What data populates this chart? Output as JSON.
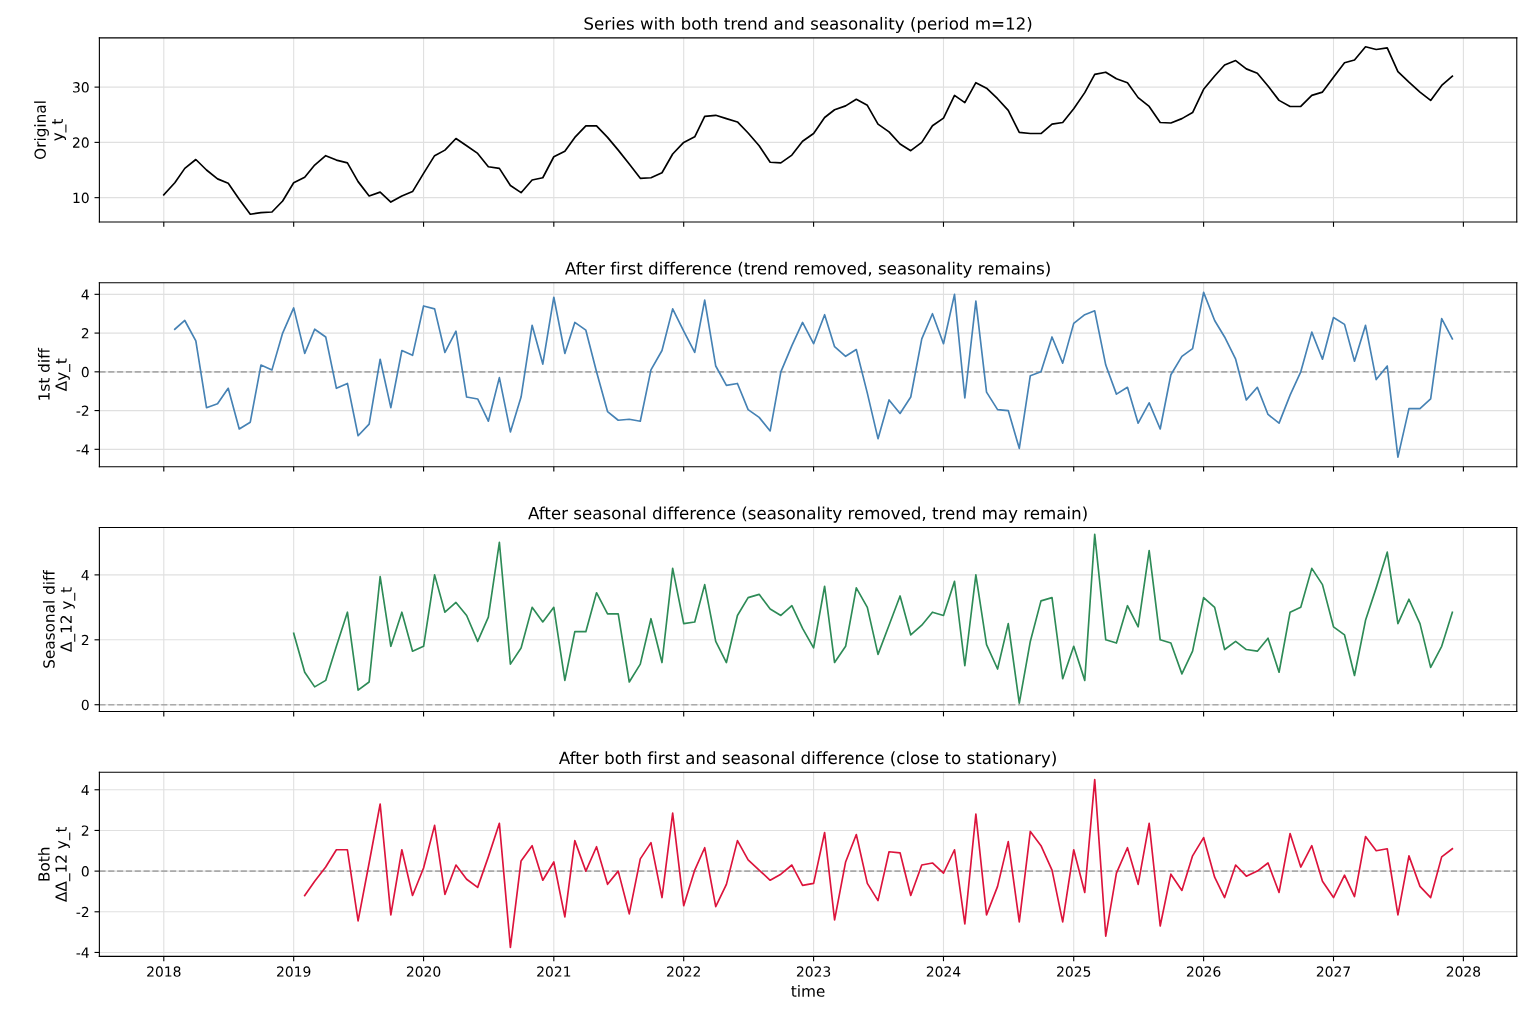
{
  "chart_data": [
    {
      "type": "line",
      "title": "Series with both trend and seasonality (period m=12)",
      "ylabel": "Original\ny_t",
      "tick_labels": "y",
      "grid": true,
      "x": [
        "2018-01",
        "2018-02",
        "2018-03",
        "2018-04",
        "2018-05",
        "2018-06",
        "2018-07",
        "2018-08",
        "2018-09",
        "2018-10",
        "2018-11",
        "2018-12",
        "2019-01",
        "2019-02",
        "2019-03",
        "2019-04",
        "2019-05",
        "2019-06",
        "2019-07",
        "2019-08",
        "2019-09",
        "2019-10",
        "2019-11",
        "2019-12",
        "2020-01",
        "2020-02",
        "2020-03",
        "2020-04",
        "2020-05",
        "2020-06",
        "2020-07",
        "2020-08",
        "2020-09",
        "2020-10",
        "2020-11",
        "2020-12",
        "2021-01",
        "2021-02",
        "2021-03",
        "2021-04",
        "2021-05",
        "2021-06",
        "2021-07",
        "2021-08",
        "2021-09",
        "2021-10",
        "2021-11",
        "2021-12",
        "2022-01",
        "2022-02",
        "2022-03",
        "2022-04",
        "2022-05",
        "2022-06",
        "2022-07",
        "2022-08",
        "2022-09",
        "2022-10",
        "2022-11",
        "2022-12",
        "2023-01",
        "2023-02",
        "2023-03",
        "2023-04",
        "2023-05",
        "2023-06",
        "2023-07",
        "2023-08",
        "2023-09",
        "2023-10",
        "2023-11",
        "2023-12",
        "2024-01",
        "2024-02",
        "2024-03",
        "2024-04",
        "2024-05",
        "2024-06",
        "2024-07",
        "2024-08",
        "2024-09",
        "2024-10",
        "2024-11",
        "2024-12",
        "2025-01",
        "2025-02",
        "2025-03",
        "2025-04",
        "2025-05",
        "2025-06",
        "2025-07",
        "2025-08",
        "2025-09",
        "2025-10",
        "2025-11",
        "2025-12",
        "2026-01",
        "2026-02",
        "2026-03",
        "2026-04",
        "2026-05",
        "2026-06",
        "2026-07",
        "2026-08",
        "2026-09",
        "2026-10",
        "2026-11",
        "2026-12",
        "2027-01",
        "2027-02",
        "2027-03",
        "2027-04",
        "2027-05",
        "2027-06",
        "2027-07",
        "2027-08",
        "2027-09",
        "2027-10",
        "2027-11",
        "2027-12"
      ],
      "xlim": [
        "2017-07-04",
        "2028-05-30"
      ],
      "xticks": [
        "2018",
        "2019",
        "2020",
        "2021",
        "2022",
        "2023",
        "2024",
        "2025",
        "2026",
        "2027",
        "2028"
      ],
      "ylim": [
        5.6,
        38.9
      ],
      "yticks": [
        10,
        20,
        30
      ],
      "series": [
        {
          "color": "#000000",
          "values": [
            10.5,
            12.7,
            15.3,
            16.9,
            15.0,
            13.4,
            12.6,
            9.7,
            7.0,
            7.3,
            7.4,
            9.4,
            12.7,
            13.7,
            15.9,
            17.6,
            16.8,
            16.3,
            12.9,
            10.3,
            11.0,
            9.2,
            10.3,
            11.1,
            14.4,
            17.6,
            18.6,
            20.7,
            19.4,
            18.0,
            15.6,
            15.3,
            12.2,
            10.9,
            13.2,
            13.6,
            17.4,
            18.4,
            20.9,
            23.0,
            23.0,
            20.9,
            18.6,
            16.1,
            13.5,
            13.6,
            14.5,
            17.9,
            20.0,
            21.0,
            24.7,
            24.9,
            24.3,
            23.7,
            21.7,
            19.4,
            16.4,
            16.3,
            17.7,
            20.2,
            21.6,
            24.5,
            25.9,
            26.6,
            27.8,
            26.7,
            23.3,
            21.9,
            19.7,
            18.5,
            20.0,
            23.0,
            24.4,
            28.5,
            27.2,
            30.8,
            29.8,
            27.9,
            25.8,
            21.8,
            21.6,
            21.6,
            23.3,
            23.6,
            26.1,
            29.0,
            32.3,
            32.7,
            31.5,
            30.8,
            28.1,
            26.5,
            23.6,
            23.5,
            24.3,
            25.4,
            29.6,
            32.0,
            34.0,
            34.8,
            33.3,
            32.5,
            30.2,
            27.6,
            26.5,
            26.5,
            28.5,
            29.1,
            31.8,
            34.4,
            34.9,
            37.3,
            36.8,
            37.1,
            32.8,
            30.9,
            29.1,
            27.6,
            30.3,
            32.0
          ]
        }
      ]
    },
    {
      "type": "line",
      "title": "After first difference (trend removed, seasonality remains)",
      "ylabel": "1st diff\nΔy_t",
      "tick_labels": "y",
      "grid": true,
      "x": [
        "2018-02",
        "2018-03",
        "2018-04",
        "2018-05",
        "2018-06",
        "2018-07",
        "2018-08",
        "2018-09",
        "2018-10",
        "2018-11",
        "2018-12",
        "2019-01",
        "2019-02",
        "2019-03",
        "2019-04",
        "2019-05",
        "2019-06",
        "2019-07",
        "2019-08",
        "2019-09",
        "2019-10",
        "2019-11",
        "2019-12",
        "2020-01",
        "2020-02",
        "2020-03",
        "2020-04",
        "2020-05",
        "2020-06",
        "2020-07",
        "2020-08",
        "2020-09",
        "2020-10",
        "2020-11",
        "2020-12",
        "2021-01",
        "2021-02",
        "2021-03",
        "2021-04",
        "2021-05",
        "2021-06",
        "2021-07",
        "2021-08",
        "2021-09",
        "2021-10",
        "2021-11",
        "2021-12",
        "2022-01",
        "2022-02",
        "2022-03",
        "2022-04",
        "2022-05",
        "2022-06",
        "2022-07",
        "2022-08",
        "2022-09",
        "2022-10",
        "2022-11",
        "2022-12",
        "2023-01",
        "2023-02",
        "2023-03",
        "2023-04",
        "2023-05",
        "2023-06",
        "2023-07",
        "2023-08",
        "2023-09",
        "2023-10",
        "2023-11",
        "2023-12",
        "2024-01",
        "2024-02",
        "2024-03",
        "2024-04",
        "2024-05",
        "2024-06",
        "2024-07",
        "2024-08",
        "2024-09",
        "2024-10",
        "2024-11",
        "2024-12",
        "2025-01",
        "2025-02",
        "2025-03",
        "2025-04",
        "2025-05",
        "2025-06",
        "2025-07",
        "2025-08",
        "2025-09",
        "2025-10",
        "2025-11",
        "2025-12",
        "2026-01",
        "2026-02",
        "2026-03",
        "2026-04",
        "2026-05",
        "2026-06",
        "2026-07",
        "2026-08",
        "2026-09",
        "2026-10",
        "2026-11",
        "2026-12",
        "2027-01",
        "2027-02",
        "2027-03",
        "2027-04",
        "2027-05",
        "2027-06",
        "2027-07",
        "2027-08",
        "2027-09",
        "2027-10",
        "2027-11",
        "2027-12"
      ],
      "xlim": [
        "2017-07-04",
        "2028-05-30"
      ],
      "xticks": [
        "2018",
        "2019",
        "2020",
        "2021",
        "2022",
        "2023",
        "2024",
        "2025",
        "2026",
        "2027",
        "2028"
      ],
      "ylim": [
        -4.9,
        4.6
      ],
      "yticks": [
        -4,
        -2,
        0,
        2,
        4
      ],
      "ref_lines": [
        {
          "axis": "y",
          "value": 0,
          "color": "#aaaaaa",
          "line_style": "dashed"
        }
      ],
      "series": [
        {
          "color": "#4682b4",
          "values": [
            2.2,
            2.65,
            1.6,
            -1.85,
            -1.65,
            -0.85,
            -2.95,
            -2.6,
            0.35,
            0.1,
            2.0,
            3.3,
            0.95,
            2.2,
            1.8,
            -0.85,
            -0.6,
            -3.3,
            -2.7,
            0.65,
            -1.85,
            1.1,
            0.85,
            3.4,
            3.25,
            1.0,
            2.1,
            -1.3,
            -1.4,
            -2.55,
            -0.3,
            -3.1,
            -1.3,
            2.4,
            0.4,
            3.85,
            0.95,
            2.55,
            2.15,
            0.0,
            -2.05,
            -2.5,
            -2.45,
            -2.55,
            0.1,
            1.1,
            3.25,
            2.1,
            1.0,
            3.7,
            0.3,
            -0.7,
            -0.6,
            -1.95,
            -2.35,
            -3.05,
            0.0,
            1.35,
            2.55,
            1.45,
            2.95,
            1.3,
            0.8,
            1.15,
            -1.1,
            -3.45,
            -1.45,
            -2.15,
            -1.3,
            1.7,
            3.0,
            1.45,
            4.0,
            -1.35,
            3.65,
            -1.05,
            -1.95,
            -2.0,
            -3.95,
            -0.2,
            0.0,
            1.8,
            0.45,
            2.5,
            2.95,
            3.15,
            0.35,
            -1.15,
            -0.8,
            -2.65,
            -1.6,
            -2.95,
            -0.15,
            0.8,
            1.2,
            4.1,
            2.65,
            1.8,
            0.65,
            -1.45,
            -0.8,
            -2.2,
            -2.65,
            -1.2,
            0.0,
            2.05,
            0.65,
            2.8,
            2.45,
            0.55,
            2.4,
            -0.4,
            0.3,
            -4.4,
            -1.9,
            -1.9,
            -1.4,
            2.75,
            1.7
          ]
        }
      ]
    },
    {
      "type": "line",
      "title": "After seasonal difference (seasonality removed, trend may remain)",
      "ylabel": "Seasonal diff\nΔ_12 y_t",
      "tick_labels": "y",
      "grid": true,
      "x": [
        "2019-01",
        "2019-02",
        "2019-03",
        "2019-04",
        "2019-05",
        "2019-06",
        "2019-07",
        "2019-08",
        "2019-09",
        "2019-10",
        "2019-11",
        "2019-12",
        "2020-01",
        "2020-02",
        "2020-03",
        "2020-04",
        "2020-05",
        "2020-06",
        "2020-07",
        "2020-08",
        "2020-09",
        "2020-10",
        "2020-11",
        "2020-12",
        "2021-01",
        "2021-02",
        "2021-03",
        "2021-04",
        "2021-05",
        "2021-06",
        "2021-07",
        "2021-08",
        "2021-09",
        "2021-10",
        "2021-11",
        "2021-12",
        "2022-01",
        "2022-02",
        "2022-03",
        "2022-04",
        "2022-05",
        "2022-06",
        "2022-07",
        "2022-08",
        "2022-09",
        "2022-10",
        "2022-11",
        "2022-12",
        "2023-01",
        "2023-02",
        "2023-03",
        "2023-04",
        "2023-05",
        "2023-06",
        "2023-07",
        "2023-08",
        "2023-09",
        "2023-10",
        "2023-11",
        "2023-12",
        "2024-01",
        "2024-02",
        "2024-03",
        "2024-04",
        "2024-05",
        "2024-06",
        "2024-07",
        "2024-08",
        "2024-09",
        "2024-10",
        "2024-11",
        "2024-12",
        "2025-01",
        "2025-02",
        "2025-03",
        "2025-04",
        "2025-05",
        "2025-06",
        "2025-07",
        "2025-08",
        "2025-09",
        "2025-10",
        "2025-11",
        "2025-12",
        "2026-01",
        "2026-02",
        "2026-03",
        "2026-04",
        "2026-05",
        "2026-06",
        "2026-07",
        "2026-08",
        "2026-09",
        "2026-10",
        "2026-11",
        "2026-12",
        "2027-01",
        "2027-02",
        "2027-03",
        "2027-04",
        "2027-05",
        "2027-06",
        "2027-07",
        "2027-08",
        "2027-09",
        "2027-10",
        "2027-11",
        "2027-12"
      ],
      "xlim": [
        "2017-07-04",
        "2028-05-30"
      ],
      "xticks": [
        "2018",
        "2019",
        "2020",
        "2021",
        "2022",
        "2023",
        "2024",
        "2025",
        "2026",
        "2027",
        "2028"
      ],
      "ylim": [
        -0.21,
        5.46
      ],
      "yticks": [
        0,
        2,
        4
      ],
      "ref_lines": [
        {
          "axis": "y",
          "value": 0,
          "color": "#aaaaaa",
          "line_style": "dashed"
        }
      ],
      "series": [
        {
          "color": "#2e8b57",
          "values": [
            2.2,
            1.0,
            0.55,
            0.75,
            1.8,
            2.85,
            0.45,
            0.7,
            3.95,
            1.8,
            2.85,
            1.65,
            1.8,
            4.0,
            2.85,
            3.15,
            2.75,
            1.95,
            2.7,
            5.0,
            1.25,
            1.75,
            3.0,
            2.55,
            3.0,
            0.75,
            2.25,
            2.25,
            3.45,
            2.8,
            2.8,
            0.7,
            1.25,
            2.65,
            1.3,
            4.2,
            2.5,
            2.55,
            3.7,
            1.95,
            1.3,
            2.75,
            3.3,
            3.4,
            2.95,
            2.75,
            3.05,
            2.35,
            1.75,
            3.65,
            1.3,
            1.8,
            3.6,
            3.0,
            1.55,
            2.45,
            3.35,
            2.15,
            2.45,
            2.85,
            2.75,
            3.8,
            1.2,
            4.0,
            1.85,
            1.1,
            2.5,
            0.05,
            1.95,
            3.2,
            3.3,
            0.8,
            1.8,
            0.75,
            5.25,
            2.0,
            1.9,
            3.05,
            2.4,
            4.75,
            2.0,
            1.9,
            0.95,
            1.65,
            3.3,
            3.0,
            1.7,
            1.95,
            1.7,
            1.65,
            2.05,
            1.0,
            2.85,
            3.0,
            4.2,
            3.7,
            2.4,
            2.15,
            0.9,
            2.6,
            3.6,
            4.7,
            2.5,
            3.25,
            2.5,
            1.15,
            1.8,
            2.85
          ]
        }
      ]
    },
    {
      "type": "line",
      "title": "After both first and seasonal difference (close to stationary)",
      "xlabel": "time",
      "ylabel": "Both\nΔΔ_12 y_t",
      "grid": true,
      "x": [
        "2019-02",
        "2019-03",
        "2019-04",
        "2019-05",
        "2019-06",
        "2019-07",
        "2019-08",
        "2019-09",
        "2019-10",
        "2019-11",
        "2019-12",
        "2020-01",
        "2020-02",
        "2020-03",
        "2020-04",
        "2020-05",
        "2020-06",
        "2020-07",
        "2020-08",
        "2020-09",
        "2020-10",
        "2020-11",
        "2020-12",
        "2021-01",
        "2021-02",
        "2021-03",
        "2021-04",
        "2021-05",
        "2021-06",
        "2021-07",
        "2021-08",
        "2021-09",
        "2021-10",
        "2021-11",
        "2021-12",
        "2022-01",
        "2022-02",
        "2022-03",
        "2022-04",
        "2022-05",
        "2022-06",
        "2022-07",
        "2022-08",
        "2022-09",
        "2022-10",
        "2022-11",
        "2022-12",
        "2023-01",
        "2023-02",
        "2023-03",
        "2023-04",
        "2023-05",
        "2023-06",
        "2023-07",
        "2023-08",
        "2023-09",
        "2023-10",
        "2023-11",
        "2023-12",
        "2024-01",
        "2024-02",
        "2024-03",
        "2024-04",
        "2024-05",
        "2024-06",
        "2024-07",
        "2024-08",
        "2024-09",
        "2024-10",
        "2024-11",
        "2024-12",
        "2025-01",
        "2025-02",
        "2025-03",
        "2025-04",
        "2025-05",
        "2025-06",
        "2025-07",
        "2025-08",
        "2025-09",
        "2025-10",
        "2025-11",
        "2025-12",
        "2026-01",
        "2026-02",
        "2026-03",
        "2026-04",
        "2026-05",
        "2026-06",
        "2026-07",
        "2026-08",
        "2026-09",
        "2026-10",
        "2026-11",
        "2026-12",
        "2027-01",
        "2027-02",
        "2027-03",
        "2027-04",
        "2027-05",
        "2027-06",
        "2027-07",
        "2027-08",
        "2027-09",
        "2027-10",
        "2027-11",
        "2027-12"
      ],
      "xlim": [
        "2017-07-04",
        "2028-05-30"
      ],
      "xticks": [
        {
          "value": "2018",
          "label": "2018"
        },
        {
          "value": "2019",
          "label": "2019"
        },
        {
          "value": "2020",
          "label": "2020"
        },
        {
          "value": "2021",
          "label": "2021"
        },
        {
          "value": "2022",
          "label": "2022"
        },
        {
          "value": "2023",
          "label": "2023"
        },
        {
          "value": "2024",
          "label": "2024"
        },
        {
          "value": "2025",
          "label": "2025"
        },
        {
          "value": "2026",
          "label": "2026"
        },
        {
          "value": "2027",
          "label": "2027"
        },
        {
          "value": "2028",
          "label": "2028"
        }
      ],
      "ylim": [
        -4.19,
        4.86
      ],
      "yticks": [
        -4,
        -2,
        0,
        2,
        4
      ],
      "ref_lines": [
        {
          "axis": "y",
          "value": 0,
          "color": "#aaaaaa",
          "line_style": "dashed"
        }
      ],
      "series": [
        {
          "color": "#dc143c",
          "values": [
            -1.2,
            -0.5,
            0.2,
            1.05,
            1.05,
            -2.45,
            0.4,
            3.3,
            -2.15,
            1.05,
            -1.2,
            0.15,
            2.25,
            -1.15,
            0.3,
            -0.4,
            -0.8,
            0.7,
            2.35,
            -3.75,
            0.5,
            1.25,
            -0.45,
            0.45,
            -2.25,
            1.5,
            0.0,
            1.2,
            -0.65,
            0.0,
            -2.1,
            0.6,
            1.4,
            -1.3,
            2.85,
            -1.7,
            0.05,
            1.15,
            -1.75,
            -0.65,
            1.5,
            0.55,
            0.05,
            -0.45,
            -0.15,
            0.3,
            -0.7,
            -0.6,
            1.9,
            -2.4,
            0.45,
            1.8,
            -0.6,
            -1.45,
            0.95,
            0.9,
            -1.2,
            0.3,
            0.4,
            -0.1,
            1.05,
            -2.6,
            2.8,
            -2.15,
            -0.75,
            1.45,
            -2.5,
            1.95,
            1.25,
            0.05,
            -2.5,
            1.05,
            -1.05,
            4.5,
            -3.2,
            -0.1,
            1.15,
            -0.65,
            2.35,
            -2.7,
            -0.15,
            -0.95,
            0.75,
            1.65,
            -0.3,
            -1.3,
            0.3,
            -0.25,
            0.0,
            0.4,
            -1.05,
            1.85,
            0.2,
            1.25,
            -0.5,
            -1.3,
            -0.2,
            -1.25,
            1.7,
            1.0,
            1.1,
            -2.15,
            0.75,
            -0.75,
            -1.3,
            0.7,
            1.1
          ]
        }
      ]
    }
  ]
}
